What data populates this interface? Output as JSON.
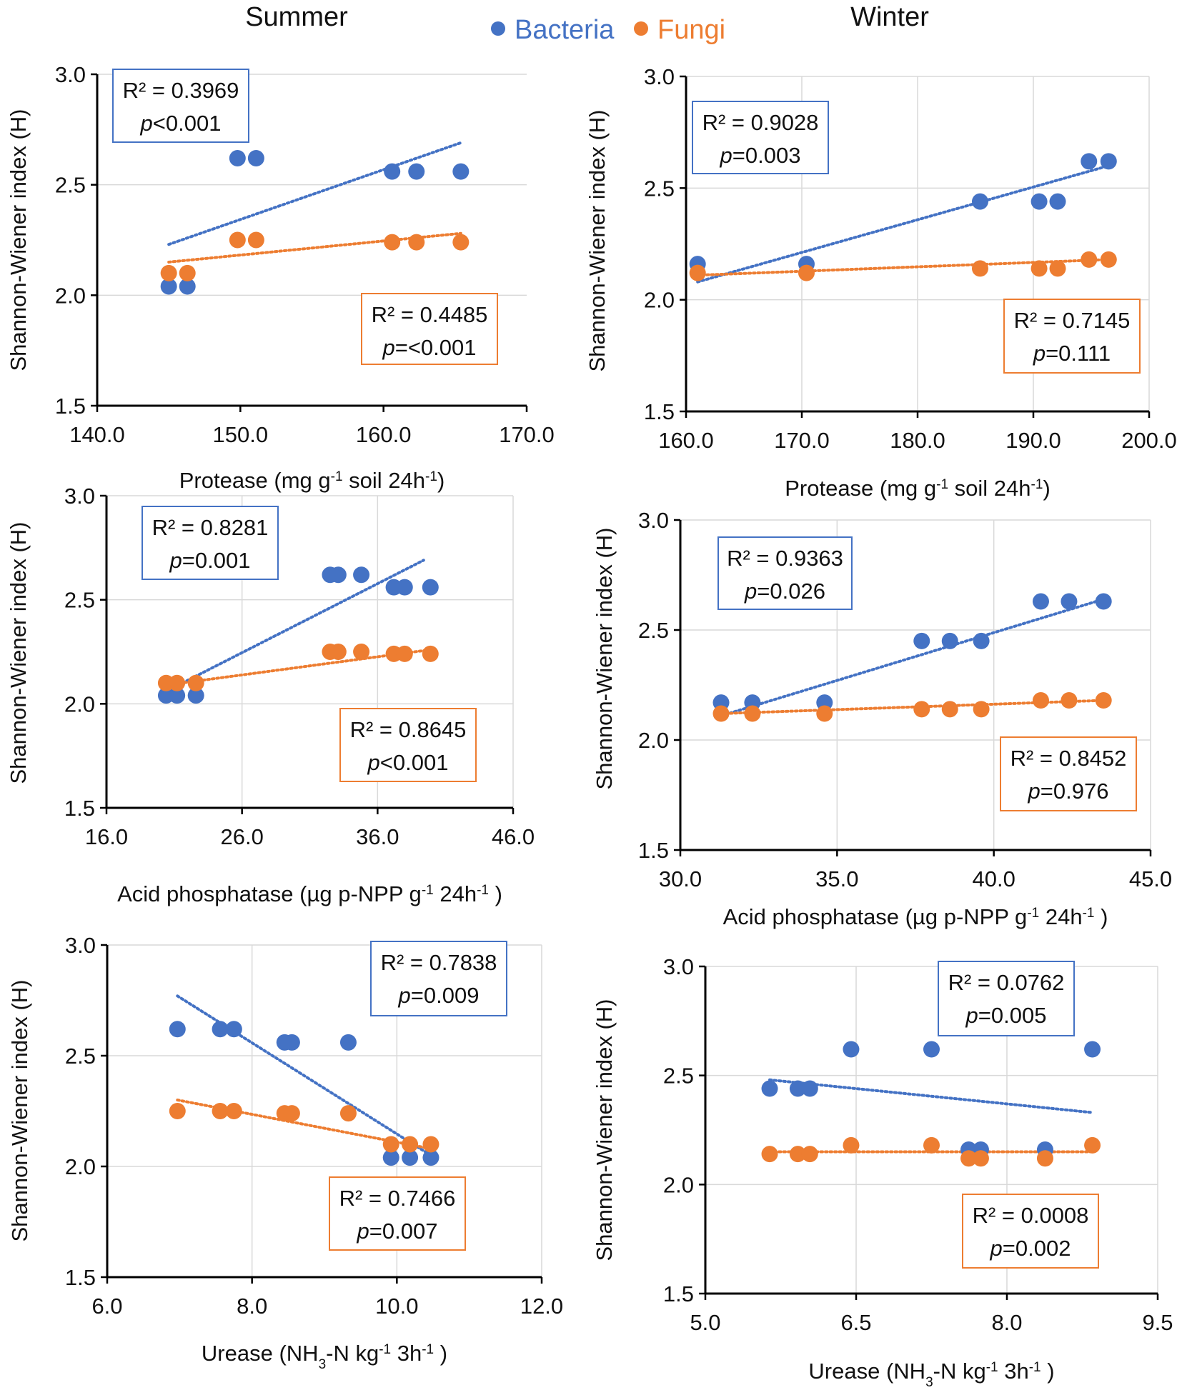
{
  "headers": {
    "summer": "Summer",
    "winter": "Winter"
  },
  "legend": [
    {
      "label": "Bacteria",
      "color": "#4472C4"
    },
    {
      "label": "Fungi",
      "color": "#ED7D31"
    }
  ],
  "colors": {
    "bacteria": "#4472C4",
    "fungi": "#ED7D31",
    "grid": "#D9D9D9",
    "axis": "#000000"
  },
  "chart_data": [
    {
      "type": "scatter",
      "season": "Summer",
      "xlabel": "Protease (mg g-1 soil 24h-1)",
      "xlabel_parts": [
        [
          "Protease (mg g",
          ""
        ],
        [
          "-1",
          "sup"
        ],
        [
          " soil 24h",
          ""
        ],
        [
          "-1",
          "sup"
        ],
        [
          ")",
          ""
        ]
      ],
      "ylabel": "Shannon-Wiener index (H)",
      "xlim": [
        140,
        170
      ],
      "xticks": [
        140,
        150,
        160,
        170
      ],
      "xtick_labels": [
        "140.0",
        "150.0",
        "160.0",
        "170.0"
      ],
      "ylim": [
        1.5,
        3.0
      ],
      "yticks": [
        1.5,
        2.0,
        2.5,
        3.0
      ],
      "ytick_labels": [
        "1.5",
        "2.0",
        "2.5",
        "3.0"
      ],
      "xgrid": false,
      "series": [
        {
          "name": "Bacteria",
          "x": [
            145.0,
            146.3,
            149.8,
            151.1,
            160.6,
            162.3,
            165.4
          ],
          "y": [
            2.04,
            2.04,
            2.62,
            2.62,
            2.56,
            2.56,
            2.56
          ],
          "trend": {
            "x": [
              145.0,
              165.4
            ],
            "y": [
              2.23,
              2.69
            ]
          },
          "r2": "R² = 0.3969",
          "p": "p<0.001"
        },
        {
          "name": "Fungi",
          "x": [
            145.0,
            146.3,
            149.8,
            151.1,
            160.6,
            162.3,
            165.4
          ],
          "y": [
            2.1,
            2.1,
            2.25,
            2.25,
            2.24,
            2.24,
            2.24
          ],
          "trend": {
            "x": [
              145.0,
              165.4
            ],
            "y": [
              2.15,
              2.28
            ]
          },
          "r2": "R² = 0.4485",
          "p": "p=<0.001"
        }
      ]
    },
    {
      "type": "scatter",
      "season": "Winter",
      "xlabel": "Protease (mg g-1 soil 24h-1)",
      "xlabel_parts": [
        [
          "Protease (mg g",
          ""
        ],
        [
          "-1",
          "sup"
        ],
        [
          " soil 24h",
          ""
        ],
        [
          "-1",
          "sup"
        ],
        [
          ")",
          ""
        ]
      ],
      "ylabel": "Shannon-Wiener index (H)",
      "xlim": [
        160,
        200
      ],
      "xticks": [
        160,
        170,
        180,
        190,
        200
      ],
      "xtick_labels": [
        "160.0",
        "170.0",
        "180.0",
        "190.0",
        "200.0"
      ],
      "ylim": [
        1.5,
        3.0
      ],
      "yticks": [
        1.5,
        2.0,
        2.5,
        3.0
      ],
      "ytick_labels": [
        "1.5",
        "2.0",
        "2.5",
        "3.0"
      ],
      "xgrid": true,
      "series": [
        {
          "name": "Bacteria",
          "x": [
            161.0,
            170.4,
            185.4,
            190.5,
            192.1,
            194.8,
            196.5
          ],
          "y": [
            2.16,
            2.16,
            2.44,
            2.44,
            2.44,
            2.62,
            2.62
          ],
          "trend": {
            "x": [
              161.0,
              196.5
            ],
            "y": [
              2.08,
              2.6
            ]
          },
          "r2": "R² = 0.9028",
          "p": "p=0.003"
        },
        {
          "name": "Fungi",
          "x": [
            161.0,
            170.4,
            185.4,
            190.5,
            192.1,
            194.8,
            196.5
          ],
          "y": [
            2.12,
            2.12,
            2.14,
            2.14,
            2.14,
            2.18,
            2.18
          ],
          "trend": {
            "x": [
              161.0,
              196.5
            ],
            "y": [
              2.11,
              2.18
            ]
          },
          "r2": "R² = 0.7145",
          "p": "p=0.111"
        }
      ]
    },
    {
      "type": "scatter",
      "season": "Summer",
      "xlabel": "Acid phosphatase (µg p-NPP g-1 24h-1 )",
      "xlabel_parts": [
        [
          "Acid phosphatase (µg p-NPP g",
          ""
        ],
        [
          "-1",
          "sup"
        ],
        [
          " 24h",
          ""
        ],
        [
          "-1",
          "sup"
        ],
        [
          " )",
          ""
        ]
      ],
      "ylabel": "Shannon-Wiener index (H)",
      "xlim": [
        16,
        46
      ],
      "xticks": [
        16,
        26,
        36,
        46
      ],
      "xtick_labels": [
        "16.0",
        "26.0",
        "36.0",
        "46.0"
      ],
      "ylim": [
        1.5,
        3.0
      ],
      "yticks": [
        1.5,
        2.0,
        2.5,
        3.0
      ],
      "ytick_labels": [
        "1.5",
        "2.0",
        "2.5",
        "3.0"
      ],
      "xgrid": true,
      "series": [
        {
          "name": "Bacteria",
          "x": [
            20.4,
            21.2,
            22.6,
            32.5,
            33.1,
            34.8,
            37.2,
            38.0,
            39.9
          ],
          "y": [
            2.04,
            2.04,
            2.04,
            2.62,
            2.62,
            2.62,
            2.56,
            2.56,
            2.56
          ],
          "trend": {
            "x": [
              20.4,
              39.4
            ],
            "y": [
              2.06,
              2.69
            ]
          },
          "r2": "R² = 0.8281",
          "p": "p=0.001"
        },
        {
          "name": "Fungi",
          "x": [
            20.4,
            21.2,
            22.6,
            32.5,
            33.1,
            34.8,
            37.2,
            38.0,
            39.9
          ],
          "y": [
            2.1,
            2.1,
            2.1,
            2.25,
            2.25,
            2.25,
            2.24,
            2.24,
            2.24
          ],
          "trend": {
            "x": [
              20.4,
              39.9
            ],
            "y": [
              2.09,
              2.26
            ]
          },
          "r2": "R² = 0.8645",
          "p": "p<0.001"
        }
      ]
    },
    {
      "type": "scatter",
      "season": "Winter",
      "xlabel": "Acid phosphatase (µg p-NPP g-1 24h-1 )",
      "xlabel_parts": [
        [
          "Acid phosphatase (µg p-NPP g",
          ""
        ],
        [
          "-1",
          "sup"
        ],
        [
          " 24h",
          ""
        ],
        [
          "-1",
          "sup"
        ],
        [
          " )",
          ""
        ]
      ],
      "ylabel": "Shannon-Wiener index (H)",
      "xlim": [
        30,
        45
      ],
      "xticks": [
        30,
        35,
        40,
        45
      ],
      "xtick_labels": [
        "30.0",
        "35.0",
        "40.0",
        "45.0"
      ],
      "ylim": [
        1.5,
        3.0
      ],
      "yticks": [
        1.5,
        2.0,
        2.5,
        3.0
      ],
      "ytick_labels": [
        "1.5",
        "2.0",
        "2.5",
        "3.0"
      ],
      "xgrid": true,
      "series": [
        {
          "name": "Bacteria",
          "x": [
            31.3,
            32.3,
            34.6,
            37.7,
            38.6,
            39.6,
            41.5,
            42.4,
            43.5
          ],
          "y": [
            2.17,
            2.17,
            2.17,
            2.45,
            2.45,
            2.45,
            2.63,
            2.63,
            2.63
          ],
          "trend": {
            "x": [
              31.3,
              43.5
            ],
            "y": [
              2.11,
              2.64
            ]
          },
          "r2": "R² = 0.9363",
          "p": "p=0.026"
        },
        {
          "name": "Fungi",
          "x": [
            31.3,
            32.3,
            34.6,
            37.7,
            38.6,
            39.6,
            41.5,
            42.4,
            43.5
          ],
          "y": [
            2.12,
            2.12,
            2.12,
            2.14,
            2.14,
            2.14,
            2.18,
            2.18,
            2.18
          ],
          "trend": {
            "x": [
              31.3,
              43.5
            ],
            "y": [
              2.12,
              2.18
            ]
          },
          "r2": "R² = 0.8452",
          "p": "p=0.976"
        }
      ]
    },
    {
      "type": "scatter",
      "season": "Summer",
      "xlabel": "Urease (NH3-N kg-1 3h-1 )",
      "xlabel_parts": [
        [
          "Urease (NH",
          ""
        ],
        [
          "3",
          "sub"
        ],
        [
          "-N kg",
          ""
        ],
        [
          "-1",
          "sup"
        ],
        [
          " 3h",
          ""
        ],
        [
          "-1",
          "sup"
        ],
        [
          " )",
          ""
        ]
      ],
      "ylabel": "Shannon-Wiener index (H)",
      "xlim": [
        6,
        12
      ],
      "xticks": [
        6,
        8,
        10,
        12
      ],
      "xtick_labels": [
        "6.0",
        "8.0",
        "10.0",
        "12.0"
      ],
      "ylim": [
        1.5,
        3.0
      ],
      "yticks": [
        1.5,
        2.0,
        2.5,
        3.0
      ],
      "ytick_labels": [
        "1.5",
        "2.0",
        "2.5",
        "3.0"
      ],
      "xgrid": true,
      "series": [
        {
          "name": "Bacteria",
          "x": [
            6.97,
            7.56,
            7.75,
            8.45,
            8.55,
            9.33,
            9.92,
            10.18,
            10.47
          ],
          "y": [
            2.62,
            2.62,
            2.62,
            2.56,
            2.56,
            2.56,
            2.04,
            2.04,
            2.04
          ],
          "trend": {
            "x": [
              6.97,
              10.47
            ],
            "y": [
              2.77,
              2.05
            ]
          },
          "r2": "R² = 0.7838",
          "p": "p=0.009"
        },
        {
          "name": "Fungi",
          "x": [
            6.97,
            7.56,
            7.75,
            8.45,
            8.55,
            9.33,
            9.92,
            10.18,
            10.47
          ],
          "y": [
            2.25,
            2.25,
            2.25,
            2.24,
            2.24,
            2.24,
            2.1,
            2.1,
            2.1
          ],
          "trend": {
            "x": [
              6.97,
              10.47
            ],
            "y": [
              2.3,
              2.08
            ]
          },
          "r2": "R² = 0.7466",
          "p": "p=0.007"
        }
      ]
    },
    {
      "type": "scatter",
      "season": "Winter",
      "xlabel": "Urease (NH3-N kg-1 3h-1 )",
      "xlabel_parts": [
        [
          "Urease (NH",
          ""
        ],
        [
          "3",
          "sub"
        ],
        [
          "-N kg",
          ""
        ],
        [
          "-1",
          "sup"
        ],
        [
          " 3h",
          ""
        ],
        [
          "-1",
          "sup"
        ],
        [
          " )",
          ""
        ]
      ],
      "ylabel": "Shannon-Wiener index (H)",
      "xlim": [
        5,
        9.5
      ],
      "xticks": [
        5,
        6.5,
        8,
        9.5
      ],
      "xtick_labels": [
        "5.0",
        "6.5",
        "8.0",
        "9.5"
      ],
      "ylim": [
        1.5,
        3.0
      ],
      "yticks": [
        1.5,
        2.0,
        2.5,
        3.0
      ],
      "ytick_labels": [
        "1.5",
        "2.0",
        "2.5",
        "3.0"
      ],
      "xgrid": true,
      "series": [
        {
          "name": "Bacteria",
          "x": [
            5.64,
            5.92,
            6.04,
            6.45,
            7.25,
            7.62,
            7.74,
            8.38,
            8.85
          ],
          "y": [
            2.44,
            2.44,
            2.44,
            2.62,
            2.62,
            2.16,
            2.16,
            2.16,
            2.62
          ],
          "trend": {
            "x": [
              5.64,
              8.85
            ],
            "y": [
              2.48,
              2.33
            ]
          },
          "r2": "R² = 0.0762",
          "p": "p=0.005"
        },
        {
          "name": "Fungi",
          "x": [
            5.64,
            5.92,
            6.04,
            6.45,
            7.25,
            7.62,
            7.74,
            8.38,
            8.85
          ],
          "y": [
            2.14,
            2.14,
            2.14,
            2.18,
            2.18,
            2.12,
            2.12,
            2.12,
            2.18
          ],
          "trend": {
            "x": [
              5.64,
              8.85
            ],
            "y": [
              2.15,
              2.15
            ]
          },
          "r2": "R² = 0.0008",
          "p": "p=0.002"
        }
      ]
    }
  ]
}
